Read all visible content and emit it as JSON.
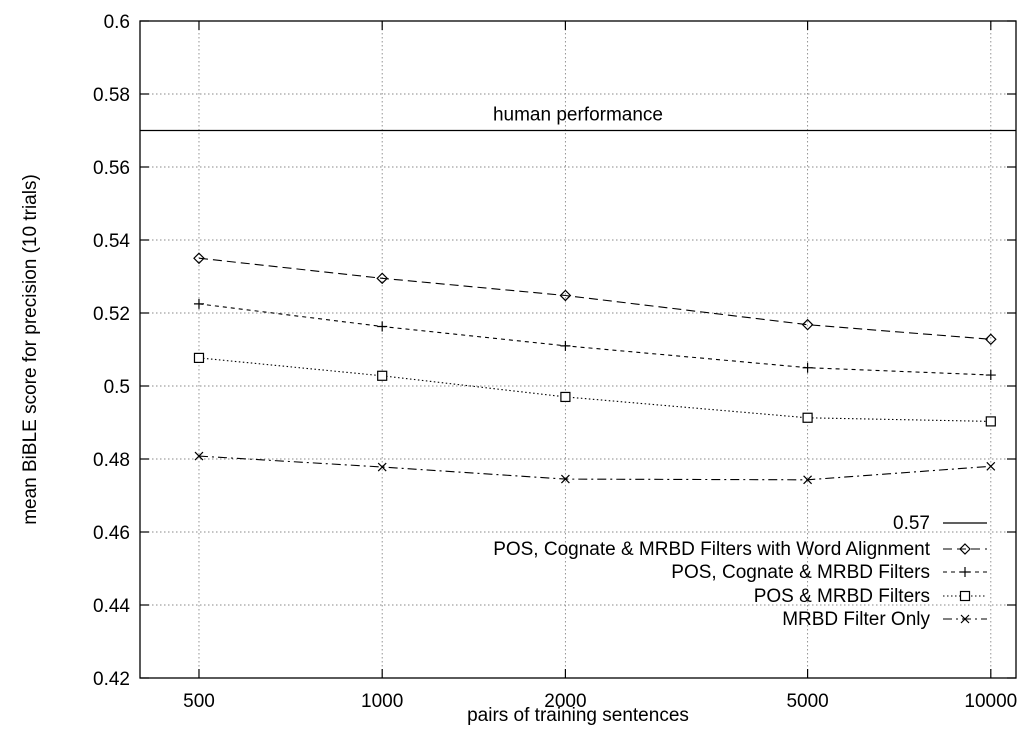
{
  "chart_data": {
    "type": "line",
    "xlabel": "pairs of training sentences",
    "ylabel": "mean BiBLE score for precision (10 trials)",
    "x_scale": "log",
    "xlim": [
      400,
      11000
    ],
    "ylim": [
      0.42,
      0.6
    ],
    "x_ticks": [
      500,
      1000,
      2000,
      5000,
      10000
    ],
    "x_tick_labels": [
      "500",
      "1000",
      "2000",
      "5000",
      "10000"
    ],
    "y_ticks": [
      0.42,
      0.44,
      0.46,
      0.48,
      0.5,
      0.52,
      0.54,
      0.56,
      0.58,
      0.6
    ],
    "y_tick_labels": [
      "0.42",
      "0.44",
      "0.46",
      "0.48",
      "0.5",
      "0.52",
      "0.54",
      "0.56",
      "0.58",
      "0.6"
    ],
    "grid": true,
    "legend_position": "bottom-right",
    "reference_line": {
      "name": "0.57",
      "value": 0.57,
      "annotation": "human performance"
    },
    "x": [
      500,
      1000,
      2000,
      5000,
      10000
    ],
    "series": [
      {
        "name": "POS, Cognate & MRBD Filters with Word Alignment",
        "marker": "diamond",
        "dash": "long-dash",
        "values": [
          0.535,
          0.5295,
          0.5248,
          0.5168,
          0.5128
        ]
      },
      {
        "name": "POS, Cognate & MRBD Filters",
        "marker": "plus",
        "dash": "short-dash",
        "values": [
          0.5225,
          0.5163,
          0.511,
          0.505,
          0.503
        ]
      },
      {
        "name": "POS & MRBD Filters",
        "marker": "square",
        "dash": "dotted",
        "values": [
          0.5077,
          0.5028,
          0.497,
          0.4913,
          0.4903
        ]
      },
      {
        "name": "MRBD Filter Only",
        "marker": "cross",
        "dash": "dash-dot",
        "values": [
          0.4808,
          0.4778,
          0.4745,
          0.4743,
          0.478
        ]
      }
    ]
  }
}
